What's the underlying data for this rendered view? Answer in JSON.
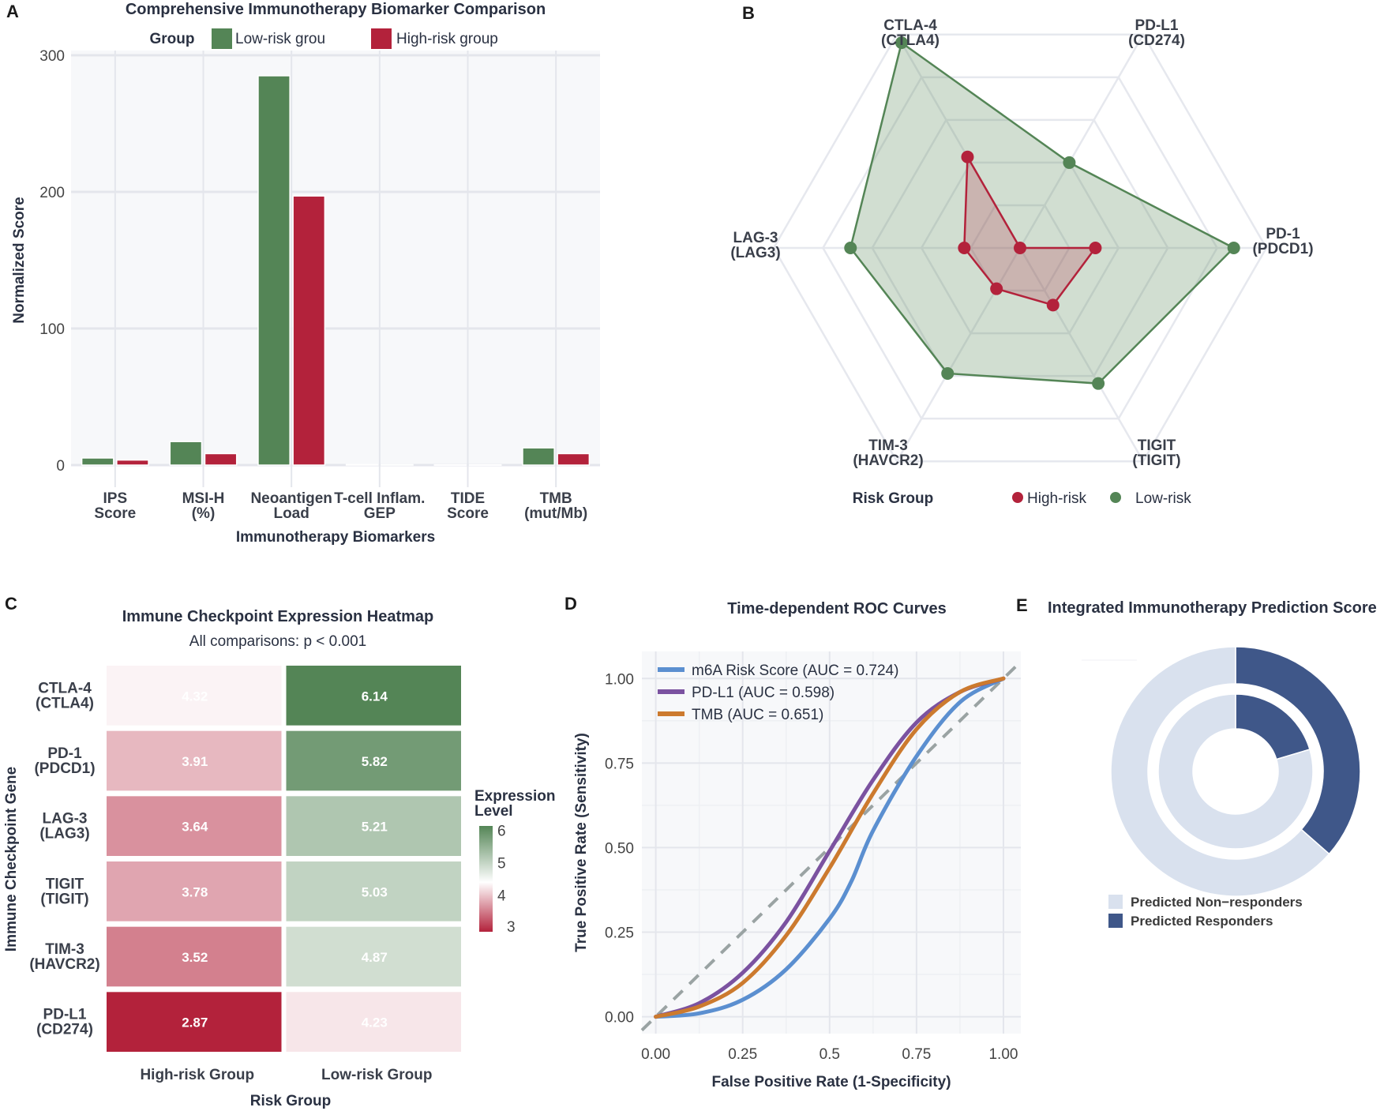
{
  "panels": {
    "A": "A",
    "B": "B",
    "C": "C",
    "D": "D",
    "E": "E"
  },
  "chart_data": [
    {
      "id": "A",
      "type": "bar",
      "title": "Comprehensive Immunotherapy Biomarker Comparison",
      "legend_title": "Group",
      "legend_position": "top",
      "categories": [
        "IPS\nScore",
        "MSI-H\n(%)",
        "Neoantigen\nLoad",
        "T-cell Inflam.\nGEP",
        "TIDE\nScore",
        "TMB\n(mut/Mb)"
      ],
      "series": [
        {
          "name": "Low-risk grou",
          "color": "#548556",
          "values": [
            5.2,
            17.2,
            285,
            0.4,
            0.2,
            12.6
          ]
        },
        {
          "name": "High-risk group",
          "color": "#b3223b",
          "values": [
            3.7,
            8.4,
            197,
            0.3,
            0.2,
            8.4
          ]
        }
      ],
      "xlabel": "Immunotherapy Biomarkers",
      "ylabel": "Normalized Score",
      "ylim": [
        0,
        300
      ],
      "yticks": [
        0,
        100,
        200,
        300
      ],
      "grid": true
    },
    {
      "id": "B",
      "type": "radar",
      "axes": [
        "CTLA-4\n(CTLA4)",
        "PD-L1\n(CD274)",
        "PD-1\n(PDCD1)",
        "TIGIT\n(TIGIT)",
        "TIM-3\n(HAVCR2)",
        "LAG-3\n(LAG3)"
      ],
      "range": [
        2.87,
        6.27
      ],
      "rings": 5,
      "series": [
        {
          "name": "High-risk",
          "color": "#b3223b",
          "values": [
            4.32,
            2.87,
            3.91,
            3.78,
            3.52,
            3.64
          ]
        },
        {
          "name": "Low-risk",
          "color": "#548556",
          "values": [
            6.14,
            4.23,
            5.82,
            5.03,
            4.87,
            5.21
          ]
        }
      ],
      "legend_title": "Risk Group",
      "legend_position": "bottom"
    },
    {
      "id": "C",
      "type": "heatmap",
      "title": "Immune Checkpoint Expression Heatmap",
      "subtitle": "All comparisons: p < 0.001",
      "rows": [
        "CTLA-4\n(CTLA4)",
        "PD-1\n(PDCD1)",
        "LAG-3\n(LAG3)",
        "TIGIT\n(TIGIT)",
        "TIM-3\n(HAVCR2)",
        "PD-L1\n(CD274)"
      ],
      "columns": [
        "High-risk Group",
        "Low-risk Group"
      ],
      "values": [
        [
          4.32,
          6.14
        ],
        [
          3.91,
          5.82
        ],
        [
          3.64,
          5.21
        ],
        [
          3.78,
          5.03
        ],
        [
          3.52,
          4.87
        ],
        [
          2.87,
          4.23
        ]
      ],
      "xlabel": "Risk Group",
      "ylabel": "Immune Checkpoint Gene",
      "colorbar": {
        "title": "Expression\nLevel",
        "ticks": [
          3,
          4,
          5,
          6
        ],
        "range": [
          2.87,
          6.14
        ],
        "mid": 4.4,
        "low_color": "#b3223b",
        "mid_color": "#ffffff",
        "high_color": "#548556"
      }
    },
    {
      "id": "D",
      "type": "line",
      "title": "Time-dependent ROC Curves",
      "xlabel": "False Positive Rate (1-Specificity)",
      "ylabel": "True Positive Rate (Sensitivity)",
      "xlim": [
        -0.04,
        1.05
      ],
      "ylim": [
        -0.05,
        1.08
      ],
      "xticks": [
        "0.00",
        "0.25",
        "0.5",
        "0.75",
        "1.00"
      ],
      "yticks": [
        "0.00",
        "0.25",
        "0.50",
        "0.75",
        "1.00"
      ],
      "legend_position": "top-left",
      "series": [
        {
          "name": "m6A Risk Score (AUC = 0.724)",
          "color": "#5b8fd0",
          "x": [
            0,
            0.125,
            0.25,
            0.375,
            0.5,
            0.5625,
            0.625,
            0.75,
            0.875,
            1
          ],
          "y": [
            0,
            0.01,
            0.05,
            0.14,
            0.29,
            0.4,
            0.55,
            0.77,
            0.93,
            1
          ]
        },
        {
          "name": "PD-L1 (AUC = 0.598)",
          "color": "#7b52a0",
          "x": [
            0,
            0.125,
            0.25,
            0.375,
            0.5,
            0.625,
            0.75,
            0.875,
            1
          ],
          "y": [
            0,
            0.04,
            0.13,
            0.28,
            0.49,
            0.7,
            0.87,
            0.96,
            1
          ]
        },
        {
          "name": "TMB (AUC = 0.651)",
          "color": "#cc7a2e",
          "x": [
            0,
            0.125,
            0.25,
            0.375,
            0.5,
            0.625,
            0.75,
            0.875,
            1
          ],
          "y": [
            0,
            0.03,
            0.1,
            0.24,
            0.44,
            0.66,
            0.85,
            0.96,
            1
          ]
        }
      ],
      "reference_line": {
        "style": "dashed",
        "color": "#9aa3a3",
        "from": [
          -0.04,
          -0.04
        ],
        "to": [
          1.04,
          1.04
        ]
      }
    },
    {
      "id": "E",
      "type": "pie",
      "title": "Integrated Immunotherapy Prediction Score",
      "rings": [
        {
          "ring": "outer",
          "slices": [
            {
              "name": "Predicted Responders",
              "value": 36.5
            },
            {
              "name": "Predicted Non-responders",
              "value": 63.5
            }
          ]
        },
        {
          "ring": "inner",
          "slices": [
            {
              "name": "Predicted Responders",
              "value": 20.4
            },
            {
              "name": "Predicted Non-responders",
              "value": 79.6
            }
          ]
        }
      ],
      "legend": [
        {
          "name": "Predicted Non−responders",
          "color": "#d9e1ee"
        },
        {
          "name": "Predicted Responders",
          "color": "#3f5789"
        }
      ],
      "legend_position": "bottom-left"
    }
  ]
}
